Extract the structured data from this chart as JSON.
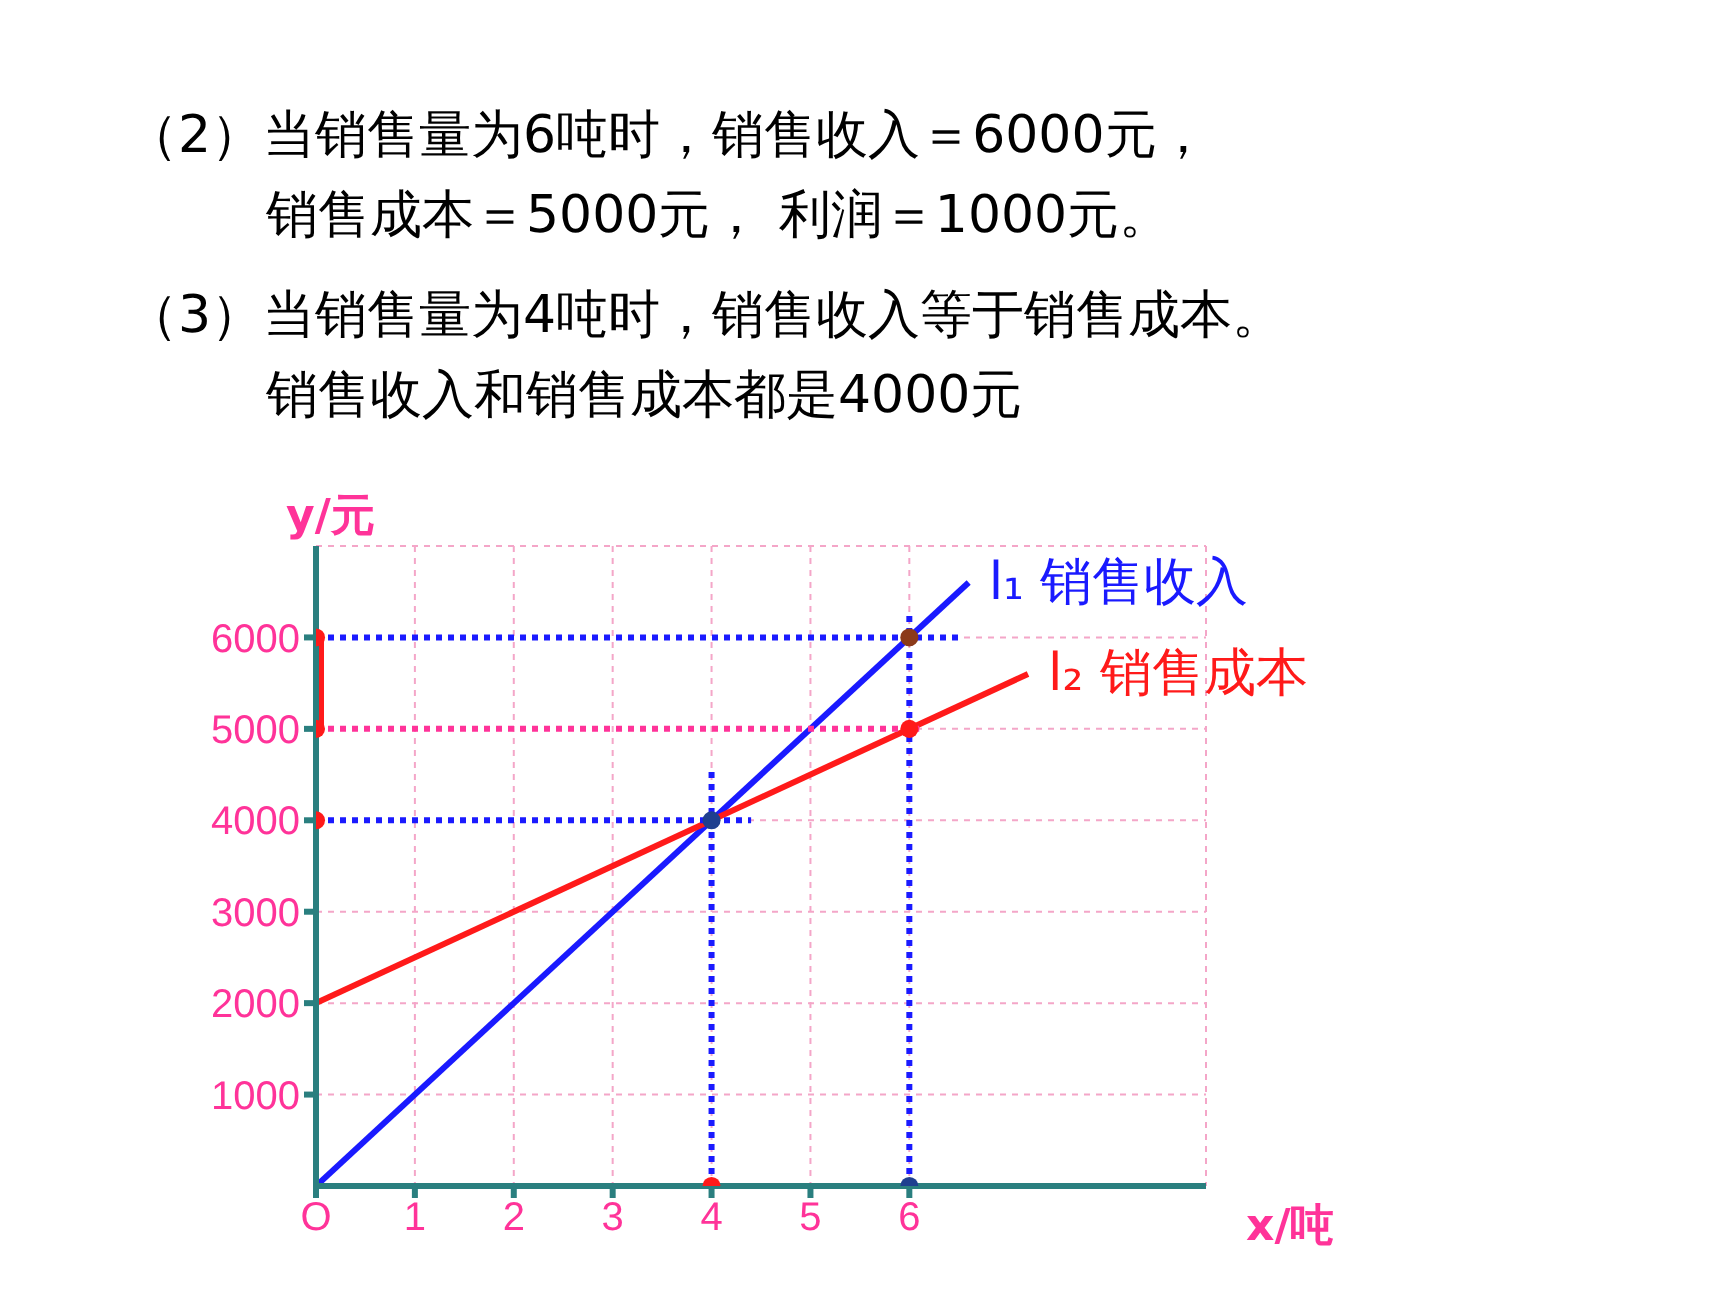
{
  "chart_data": {
    "type": "line",
    "annotations": [
      "（2）当销售量为6吨时，销售收入＝6000元，",
      "销售成本＝5000元， 利润＝1000元。",
      "（3）当销售量为4吨时，销售收入等于销售成本。",
      "销售收入和销售成本都是4000元"
    ],
    "xlabel": "x/吨",
    "ylabel": "y/元",
    "series": [
      {
        "name": "l₁ 销售收入",
        "color": "#1a1aff",
        "x": [
          0,
          6.6
        ],
        "values": [
          0,
          6600
        ]
      },
      {
        "name": "l₂ 销售成本",
        "color": "#ff1a1a",
        "x": [
          0,
          7.2
        ],
        "values": [
          2000,
          5600
        ]
      },
      {
        "color": "#ff1a1a",
        "x": [
          0,
          0
        ],
        "values": [
          5000,
          6000
        ]
      },
      {
        "color": "#1a1aff",
        "line_style": "dotted",
        "x": [
          0,
          6.5
        ],
        "values": [
          6000,
          6000
        ]
      },
      {
        "color": "#ff3399",
        "line_style": "dotted",
        "x": [
          0,
          6.1
        ],
        "values": [
          5000,
          5000
        ]
      },
      {
        "color": "#1a1aff",
        "line_style": "dotted",
        "x": [
          0,
          4.4
        ],
        "values": [
          4000,
          4000
        ]
      },
      {
        "color": "#1a1aff",
        "line_style": "dotted",
        "x": [
          4,
          4
        ],
        "values": [
          0,
          4550
        ]
      },
      {
        "color": "#1a1aff",
        "line_style": "dotted",
        "x": [
          6,
          6
        ],
        "values": [
          0,
          6300
        ]
      },
      {
        "type": "scatter",
        "marker": "circle",
        "x": [
          0,
          0,
          0,
          4,
          6,
          6,
          4,
          6
        ],
        "values": [
          6000,
          5000,
          4000,
          4000,
          6000,
          5000,
          0,
          0
        ],
        "colors": [
          "#ff1a1a",
          "#ff1a1a",
          "#ff1a1a",
          "#1f3f8f",
          "#8b3a1a",
          "#ff1a1a",
          "#ff1a1a",
          "#1f3f8f"
        ]
      }
    ],
    "xlim": [
      0,
      9
    ],
    "ylim": [
      0,
      7000
    ],
    "xticks": [
      {
        "value": 0,
        "label": "O"
      },
      1,
      2,
      3,
      4,
      5,
      6
    ],
    "yticks": [
      1000,
      2000,
      3000,
      4000,
      5000,
      6000
    ],
    "grid": true,
    "marker": "none",
    "line_style": "solid"
  }
}
